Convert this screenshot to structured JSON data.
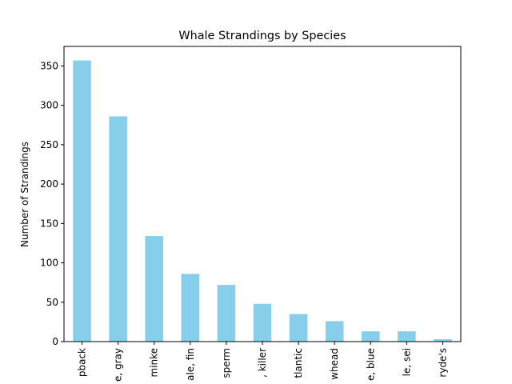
{
  "chart_data": {
    "type": "bar",
    "title": "Whale Strandings by Species",
    "xlabel": "",
    "ylabel": "Number of Strandings",
    "categories": [
      "pback",
      "e, gray",
      "minke",
      "ale, fin",
      "sperm",
      ", killer",
      "tlantic",
      "whead",
      "e, blue",
      "le, sei",
      "ryde's"
    ],
    "values": [
      357,
      286,
      134,
      86,
      72,
      48,
      35,
      26,
      13,
      13,
      3
    ],
    "ylim": [
      0,
      374.85
    ],
    "yticks": [
      0,
      50,
      100,
      150,
      200,
      250,
      300,
      350
    ],
    "bar_color": "#87ceeb",
    "grid": false,
    "legend": "none"
  }
}
